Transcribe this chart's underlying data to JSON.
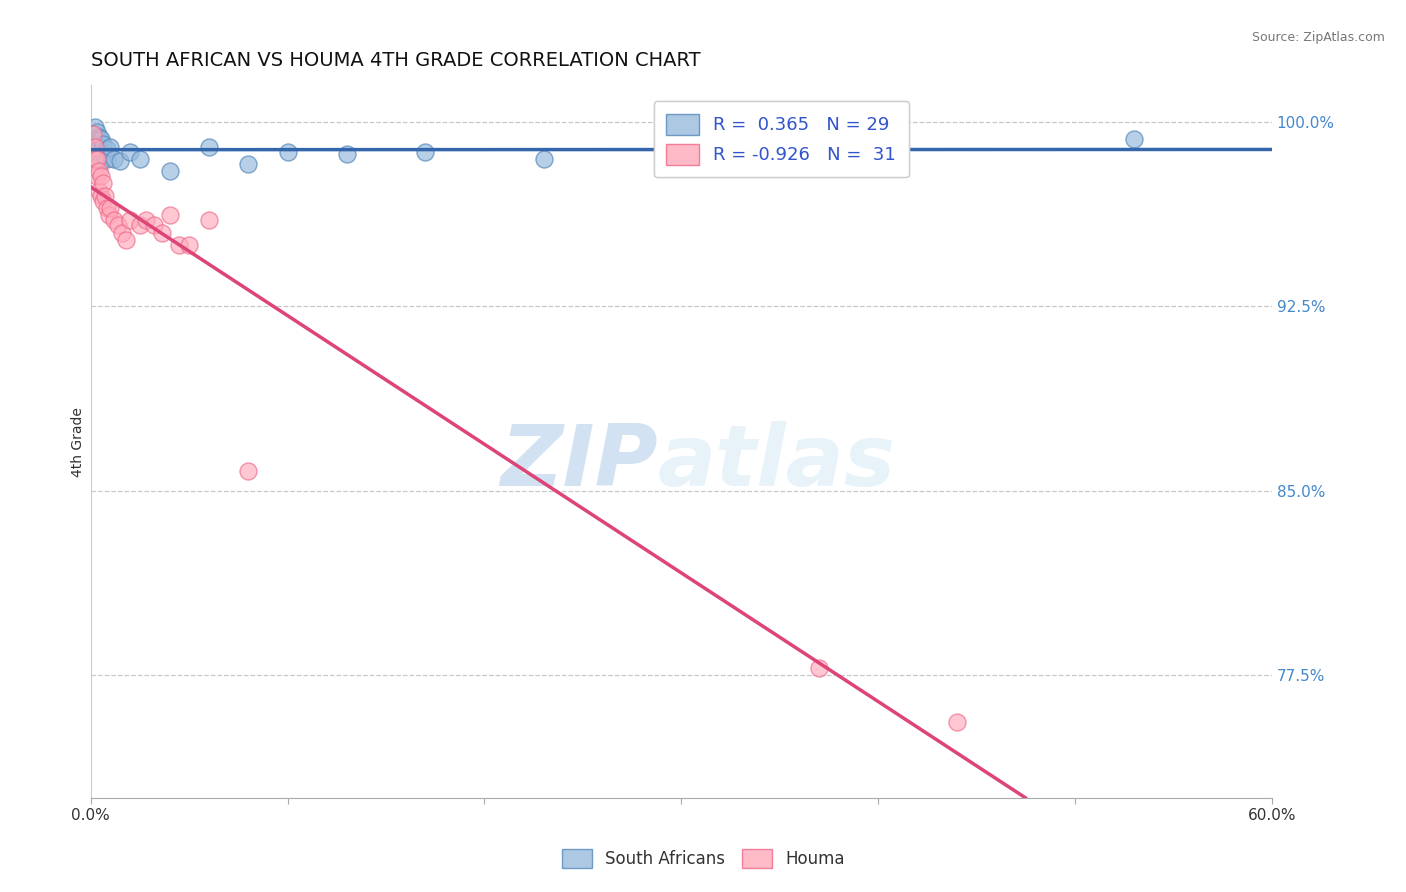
{
  "title": "SOUTH AFRICAN VS HOUMA 4TH GRADE CORRELATION CHART",
  "source_text": "Source: ZipAtlas.com",
  "ylabel": "4th Grade",
  "xlim": [
    0.0,
    0.6
  ],
  "ylim": [
    0.725,
    1.015
  ],
  "xticks": [
    0.0,
    0.1,
    0.2,
    0.3,
    0.4,
    0.5,
    0.6
  ],
  "xticklabels": [
    "0.0%",
    "",
    "",
    "",
    "",
    "",
    "60.0%"
  ],
  "yticks_right": [
    0.775,
    0.85,
    0.925,
    1.0
  ],
  "yticklabels_right": [
    "77.5%",
    "85.0%",
    "92.5%",
    "100.0%"
  ],
  "blue_color": "#99BBDD",
  "pink_color": "#FFAABB",
  "blue_edge_color": "#5588BB",
  "pink_edge_color": "#EE6688",
  "blue_line_color": "#3366AA",
  "pink_line_color": "#DD4477",
  "legend_R_blue": "R =  0.365",
  "legend_N_blue": "N = 29",
  "legend_R_pink": "R = -0.926",
  "legend_N_pink": "N =  31",
  "blue_scatter_x": [
    0.001,
    0.002,
    0.002,
    0.003,
    0.003,
    0.003,
    0.004,
    0.004,
    0.004,
    0.005,
    0.005,
    0.005,
    0.006,
    0.006,
    0.008,
    0.008,
    0.01,
    0.012,
    0.015,
    0.02,
    0.025,
    0.04,
    0.06,
    0.08,
    0.1,
    0.13,
    0.17,
    0.23,
    0.53
  ],
  "blue_scatter_y": [
    0.995,
    0.998,
    0.993,
    0.996,
    0.991,
    0.988,
    0.994,
    0.99,
    0.986,
    0.993,
    0.988,
    0.984,
    0.991,
    0.987,
    0.989,
    0.985,
    0.99,
    0.985,
    0.984,
    0.988,
    0.985,
    0.98,
    0.99,
    0.983,
    0.988,
    0.987,
    0.988,
    0.985,
    0.993
  ],
  "pink_scatter_x": [
    0.001,
    0.002,
    0.002,
    0.003,
    0.003,
    0.004,
    0.004,
    0.005,
    0.005,
    0.006,
    0.006,
    0.007,
    0.008,
    0.009,
    0.01,
    0.012,
    0.014,
    0.016,
    0.018,
    0.02,
    0.025,
    0.028,
    0.032,
    0.036,
    0.04,
    0.045,
    0.05,
    0.06,
    0.08,
    0.37,
    0.44
  ],
  "pink_scatter_y": [
    0.995,
    0.99,
    0.985,
    0.985,
    0.978,
    0.98,
    0.972,
    0.978,
    0.97,
    0.975,
    0.968,
    0.97,
    0.965,
    0.962,
    0.965,
    0.96,
    0.958,
    0.955,
    0.952,
    0.96,
    0.958,
    0.96,
    0.958,
    0.955,
    0.962,
    0.95,
    0.95,
    0.96,
    0.858,
    0.778,
    0.756
  ],
  "watermark_zip": "ZIP",
  "watermark_atlas": "atlas",
  "background_color": "#FFFFFF",
  "grid_color": "#BBBBBB",
  "legend_color": "#3355CC",
  "axis_label_color": "#333333",
  "right_tick_color": "#4488CC"
}
